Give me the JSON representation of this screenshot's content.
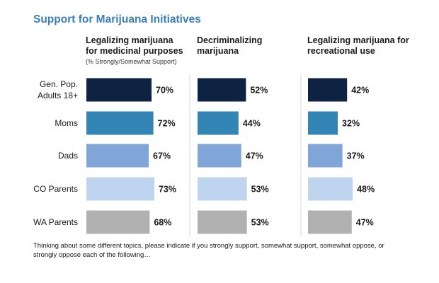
{
  "title": "Support for Marijuana Initiatives",
  "footnote": "Thinking about some different topics, please indicate if you strongly support, somewhat support, somewhat oppose, or strongly oppose each of the following…",
  "colors": {
    "title": "#3a7fb5",
    "separator": "#d9d9d9",
    "series": [
      "#0e2244",
      "#3385b5",
      "#7fa6d6",
      "#bed4ef",
      "#b0b0b0"
    ]
  },
  "chart_data": {
    "type": "bar",
    "orientation": "horizontal",
    "unit": "%",
    "categories": [
      [
        "Gen. Pop.",
        "Adults 18+"
      ],
      [
        "Moms"
      ],
      [
        "Dads"
      ],
      [
        "CO Parents"
      ],
      [
        "WA Parents"
      ]
    ],
    "panels": [
      {
        "heading": [
          "Legalizing marijuana",
          "for medicinal purposes"
        ],
        "subheading": "(% Strongly/Somewhat Support)",
        "values": [
          70,
          72,
          67,
          73,
          68
        ],
        "labels": [
          "70%",
          "72%",
          "67%",
          "73%",
          "68%"
        ]
      },
      {
        "heading": [
          "Decriminalizing",
          "marijuana"
        ],
        "subheading": "",
        "values": [
          52,
          44,
          47,
          53,
          53
        ],
        "labels": [
          "52%",
          "44%",
          "47%",
          "53%",
          "53%"
        ]
      },
      {
        "heading": [
          "Legalizing marijuana for",
          "recreational use"
        ],
        "subheading": "",
        "values": [
          42,
          32,
          37,
          48,
          47
        ],
        "labels": [
          "42%",
          "32%",
          "37%",
          "48%",
          "47%"
        ]
      }
    ],
    "xlim": [
      0,
      100
    ],
    "grid": false,
    "legend": "none"
  }
}
